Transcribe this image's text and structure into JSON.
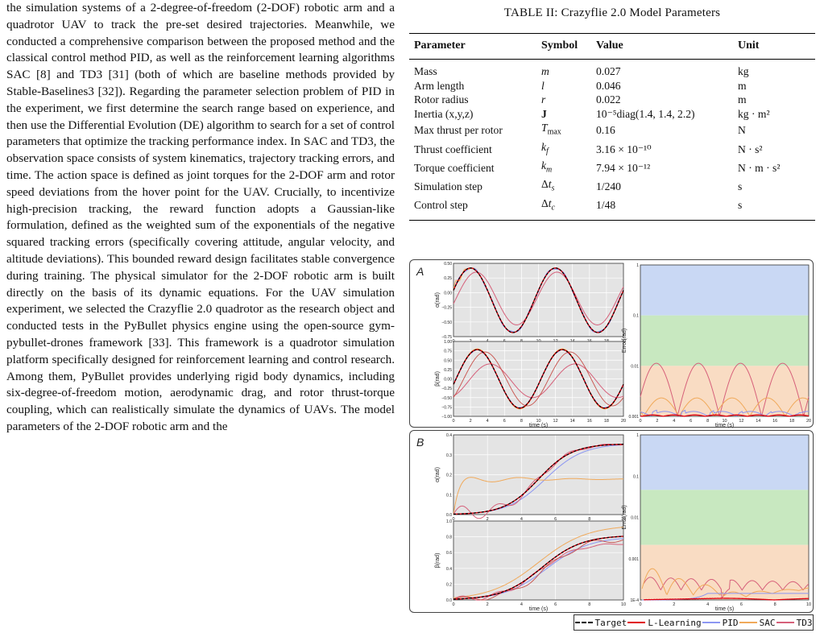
{
  "body_text": "the simulation systems of a 2-degree-of-freedom (2-DOF) robotic arm and a quadrotor UAV to track the pre-set desired trajectories. Meanwhile, we conducted a comprehensive comparison between the proposed method and the classical control method PID, as well as the reinforcement learning algorithms SAC [8] and TD3 [31] (both of which are baseline methods provided by Stable-Baselines3 [32]). Regarding the parameter selection problem of PID in the experiment, we first determine the search range based on experience, and then use the Differential Evolution (DE) algorithm to search for a set of control parameters that optimize the tracking performance index. In SAC and TD3, the observation space consists of system kinematics, trajectory tracking errors, and time. The action space is defined as joint torques for the 2-DOF arm and rotor speed deviations from the hover point for the UAV. Crucially, to incentivize high-precision tracking, the reward function adopts a Gaussian-like formulation, defined as the weighted sum of the exponentials of the negative squared tracking errors (specifically covering attitude, angular velocity, and altitude deviations). This bounded reward design facilitates stable convergence during training. The physical simulator for the 2-DOF robotic arm is built directly on the basis of its dynamic equations. For the UAV simulation experiment, we selected the Crazyflie 2.0 quadrotor as the research object and conducted tests in the PyBullet physics engine using the open-source gym-pybullet-drones framework [33]. This framework is a quadrotor simulation platform specifically designed for reinforcement learning and control research. Among them, PyBullet provides underlying rigid body dynamics, including six-degree-of-freedom motion, aerodynamic drag, and rotor thrust-torque coupling, which can realistically simulate the dynamics of UAVs. The model parameters of the 2-DOF robotic arm and the",
  "table": {
    "caption": "TABLE II: Crazyflie 2.0 Model Parameters",
    "headers": [
      "Parameter",
      "Symbol",
      "Value",
      "Unit"
    ],
    "rows": [
      [
        "Mass",
        "m",
        "0.027",
        "kg"
      ],
      [
        "Arm length",
        "l",
        "0.046",
        "m"
      ],
      [
        "Rotor radius",
        "r",
        "0.022",
        "m"
      ],
      [
        "Inertia (x,y,z)",
        "J",
        "10⁻⁵diag(1.4, 1.4, 2.2)",
        "kg · m²"
      ],
      [
        "Max thrust per rotor",
        "Tmax",
        "0.16",
        "N"
      ],
      [
        "Thrust coefficient",
        "kf",
        "3.16 × 10⁻¹⁰",
        "N · s²"
      ],
      [
        "Torque coefficient",
        "km",
        "7.94 × 10⁻¹²",
        "N · m · s²"
      ],
      [
        "Simulation step",
        "Δts",
        "1/240",
        "s"
      ],
      [
        "Control step",
        "Δtc",
        "1/48",
        "s"
      ]
    ]
  },
  "figure": {
    "panel_A_label": "A",
    "panel_B_label": "B",
    "legend": [
      {
        "name": "Target",
        "color": "#000000",
        "dash": true
      },
      {
        "name": "L-Learning",
        "color": "#e0000e",
        "dash": false
      },
      {
        "name": "PID",
        "color": "#8c96f2",
        "dash": false
      },
      {
        "name": "SAC",
        "color": "#f0a95a",
        "dash": false
      },
      {
        "name": "TD3",
        "color": "#d6607a",
        "dash": false
      }
    ],
    "band_colors": {
      "high": "#c9d8f4",
      "mid": "#c8e8c0",
      "low": "#f9dcc3"
    },
    "plot_bg": "#e4e4e4"
  },
  "chart_data": [
    {
      "type": "line",
      "panel": "A-top",
      "xlabel": "",
      "ylabel": "α(rad)",
      "xlim": [
        0,
        20
      ],
      "ylim": [
        -0.75,
        0.5
      ],
      "xticks": [
        "0",
        "2",
        "4",
        "6",
        "8",
        "10",
        "12",
        "14",
        "16",
        "18",
        "20"
      ],
      "yticks": [
        "0.50",
        "0.25",
        "0.00",
        "−0.25",
        "−0.50",
        "−0.75"
      ],
      "series": [
        {
          "name": "Target",
          "x": [
            0,
            1,
            2,
            3,
            4,
            5,
            6,
            7,
            8,
            9,
            10,
            11,
            12,
            13,
            14,
            15,
            16,
            17,
            18,
            19,
            20
          ],
          "y": [
            0,
            0.25,
            0.42,
            0.42,
            0.2,
            -0.1,
            -0.45,
            -0.68,
            -0.7,
            -0.45,
            -0.1,
            0.2,
            0.42,
            0.42,
            0.2,
            -0.1,
            -0.45,
            -0.68,
            -0.7,
            -0.45,
            -0.1
          ]
        },
        {
          "name": "TD3",
          "x": [
            0,
            2,
            4,
            6,
            8,
            10,
            12,
            14,
            16,
            18,
            20
          ],
          "y": [
            -0.1,
            0.3,
            0.38,
            -0.05,
            -0.55,
            -0.5,
            0.1,
            0.4,
            0.1,
            -0.45,
            -0.3
          ]
        }
      ]
    },
    {
      "type": "line",
      "panel": "A-bottom",
      "xlabel": "time (s)",
      "ylabel": "β(rad)",
      "xlim": [
        0,
        20
      ],
      "ylim": [
        -1.0,
        1.0
      ],
      "xticks": [
        "0",
        "2",
        "4",
        "6",
        "8",
        "10",
        "12",
        "14",
        "16",
        "18",
        "20"
      ],
      "yticks": [
        "1.00",
        "0.75",
        "0.50",
        "0.25",
        "0.00",
        "−0.25",
        "−0.50",
        "−0.75",
        "−1.00"
      ],
      "series": [
        {
          "name": "Target",
          "x": [
            0,
            2.5,
            5,
            7.5,
            10,
            12.5,
            15,
            17.5,
            20
          ],
          "y": [
            0,
            0.8,
            0,
            -0.8,
            0,
            0.8,
            0,
            -0.8,
            0
          ]
        },
        {
          "name": "TD3",
          "x": [
            0,
            2.5,
            5,
            7.5,
            10,
            12.5,
            15,
            17.5,
            20
          ],
          "y": [
            -0.2,
            0.3,
            0.45,
            0.1,
            -0.4,
            0.1,
            0.4,
            0.1,
            -0.3
          ]
        }
      ]
    },
    {
      "type": "line",
      "panel": "A-error",
      "xlabel": "time (s)",
      "ylabel": "Error(rad)",
      "yscale": "log",
      "xlim": [
        0,
        20
      ],
      "ylim": [
        0.0005,
        1
      ],
      "xticks": [
        "0",
        "2",
        "4",
        "6",
        "8",
        "10",
        "12",
        "14",
        "16",
        "18",
        "20"
      ],
      "yticks": [
        "1",
        "0.1",
        "0.01",
        "0.001"
      ]
    },
    {
      "type": "line",
      "panel": "B-top",
      "xlabel": "",
      "ylabel": "α(rad)",
      "xlim": [
        0,
        10
      ],
      "ylim": [
        0,
        0.45
      ],
      "xticks": [
        "0",
        "2",
        "4",
        "6",
        "8",
        "10"
      ],
      "yticks": [
        "0.4",
        "0.3",
        "0.2",
        "0.1",
        "0.0"
      ],
      "series": [
        {
          "name": "Target",
          "x": [
            0,
            1,
            2,
            3,
            4,
            5,
            6,
            7,
            8,
            9,
            10
          ],
          "y": [
            0,
            0.005,
            0.03,
            0.08,
            0.15,
            0.22,
            0.29,
            0.35,
            0.38,
            0.395,
            0.4
          ]
        },
        {
          "name": "SAC",
          "x": [
            0,
            1,
            2,
            3,
            4,
            5,
            6,
            7,
            8,
            9,
            10
          ],
          "y": [
            0,
            0.19,
            0.19,
            0.22,
            0.2,
            0.22,
            0.2,
            0.21,
            0.2,
            0.2,
            0.2
          ]
        }
      ]
    },
    {
      "type": "line",
      "panel": "B-bottom",
      "xlabel": "time (s)",
      "ylabel": "β(rad)",
      "xlim": [
        0,
        10
      ],
      "ylim": [
        0,
        1.0
      ],
      "xticks": [
        "0",
        "2",
        "4",
        "6",
        "8",
        "10"
      ],
      "yticks": [
        "1.0",
        "0.8",
        "0.6",
        "0.4",
        "0.2",
        "0.0"
      ],
      "series": [
        {
          "name": "Target",
          "x": [
            0,
            1,
            2,
            3,
            4,
            5,
            6,
            7,
            8,
            9,
            10
          ],
          "y": [
            0,
            0.01,
            0.05,
            0.12,
            0.25,
            0.4,
            0.55,
            0.68,
            0.76,
            0.79,
            0.8
          ]
        },
        {
          "name": "SAC",
          "x": [
            0,
            2,
            4,
            6,
            8,
            10
          ],
          "y": [
            0,
            0.1,
            0.3,
            0.62,
            0.82,
            0.9
          ]
        }
      ]
    },
    {
      "type": "line",
      "panel": "B-error",
      "xlabel": "time (s)",
      "ylabel": "Error(rad)",
      "yscale": "log",
      "xlim": [
        0,
        10
      ],
      "ylim": [
        0.0001,
        1
      ],
      "xticks": [
        "0",
        "2",
        "4",
        "6",
        "8",
        "10"
      ],
      "yticks": [
        "1",
        "0.1",
        "0.01",
        "0.001",
        "1E-4"
      ]
    }
  ]
}
